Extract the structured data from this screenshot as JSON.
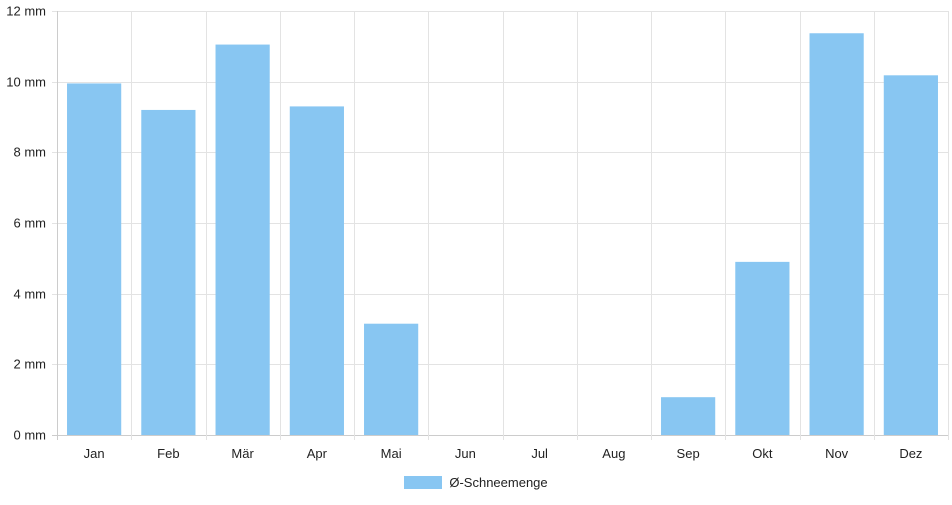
{
  "chart_data": {
    "type": "bar",
    "categories": [
      "Jan",
      "Feb",
      "Mär",
      "Apr",
      "Mai",
      "Jun",
      "Jul",
      "Aug",
      "Sep",
      "Okt",
      "Nov",
      "Dez"
    ],
    "series": [
      {
        "name": "Ø-Schneemenge",
        "values": [
          9.95,
          9.2,
          11.05,
          9.3,
          3.15,
          0,
          0,
          0,
          1.07,
          4.9,
          11.37,
          10.18
        ]
      }
    ],
    "ylim": [
      0,
      12
    ],
    "yticks": [
      0,
      2,
      4,
      6,
      8,
      10,
      12
    ],
    "ytick_labels": [
      "0 mm",
      "2 mm",
      "4 mm",
      "6 mm",
      "8 mm",
      "10 mm",
      "12 mm"
    ],
    "grid": true,
    "legend_position": "bottom-center"
  },
  "colors": {
    "bar": "#88c6f2",
    "grid": "#e3e3e3",
    "axis": "#cccccc",
    "text": "#222222"
  }
}
